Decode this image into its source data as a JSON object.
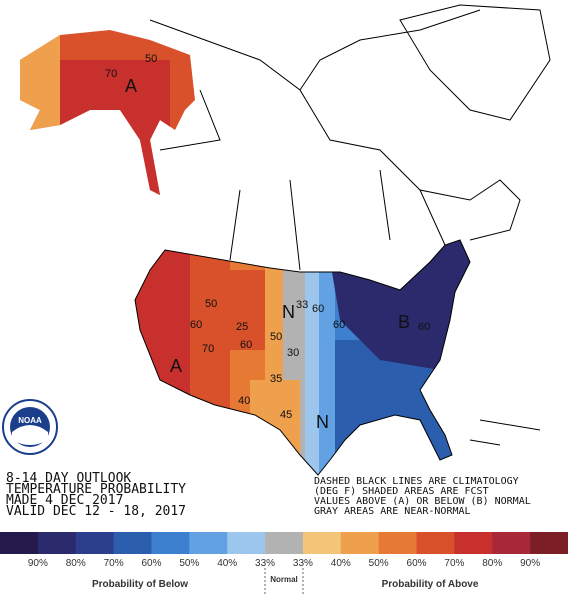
{
  "map": {
    "outlook": [
      "8-14 DAY OUTLOOK",
      "TEMPERATURE PROBABILITY",
      "MADE  4 DEC 2017",
      "VALID  DEC 12 - 18, 2017"
    ],
    "note": [
      "DASHED BLACK LINES ARE CLIMATOLOGY",
      "(DEG F) SHADED AREAS ARE FCST",
      "VALUES ABOVE (A) OR BELOW (B) NORMAL",
      "GRAY AREAS ARE NEAR-NORMAL"
    ],
    "logo": "NOAA",
    "labels": [
      "A",
      "70",
      "50",
      "A",
      "50",
      "60",
      "25",
      "70",
      "60",
      "50",
      "30",
      "35",
      "40",
      "45",
      "N",
      "33",
      "60",
      "N",
      "60",
      "B",
      "60"
    ]
  },
  "legend": {
    "colors": [
      "#241a4c",
      "#2a2a6c",
      "#2b3f8c",
      "#2c5eae",
      "#3e80d0",
      "#62a2e2",
      "#9cc6ee",
      "#b2b2b2",
      "#f4c478",
      "#eea04c",
      "#e67a34",
      "#d8512a",
      "#c8302e",
      "#a82838",
      "#7c1e26"
    ],
    "labels": [
      "90%",
      "80%",
      "70%",
      "60%",
      "50%",
      "40%",
      "33%",
      "33%",
      "40%",
      "50%",
      "60%",
      "70%",
      "80%",
      "90%"
    ],
    "below": "Probability of Below",
    "normal": "Normal",
    "above": "Probability of Above"
  }
}
